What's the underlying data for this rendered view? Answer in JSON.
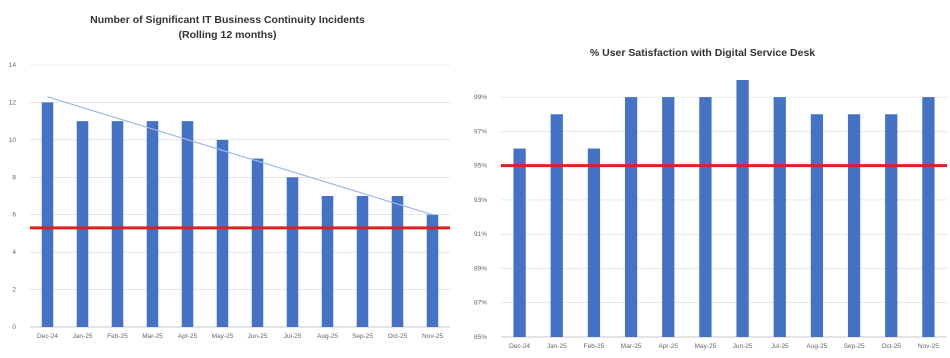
{
  "colors": {
    "bar": "#4472c4",
    "target": "#e02020",
    "trend": "#9fb8e0",
    "grid": "#d9d9d9",
    "axis": "#bfbfbf"
  },
  "chart_data": [
    {
      "type": "bar",
      "title": "Number of Significant IT Business Continuity Incidents",
      "subtitle": "(Rolling 12 months)",
      "categories": [
        "Dec-24",
        "Jan-25",
        "Feb-25",
        "Mar-25",
        "Apr-25",
        "May-25",
        "Jun-25",
        "Jul-25",
        "Aug-25",
        "Sep-25",
        "Oct-25",
        "Nov-25"
      ],
      "values": [
        12,
        11,
        11,
        11,
        11,
        10,
        9,
        8,
        7,
        7,
        7,
        6
      ],
      "ylim": [
        0,
        14
      ],
      "yticks": [
        "0",
        "2",
        "4",
        "6",
        "8",
        "10",
        "12",
        "14"
      ],
      "target_line": 5.3,
      "trendline": {
        "start": 12.3,
        "end": 6.0
      },
      "grid": true
    },
    {
      "type": "bar",
      "title": "% User Satisfaction with Digital Service Desk",
      "categories": [
        "Dec-24",
        "Jan-25",
        "Feb-25",
        "Mar-25",
        "Apr-25",
        "May-25",
        "Jun-25",
        "Jul-25",
        "Aug-25",
        "Sep-25",
        "Oct-25",
        "Nov-25"
      ],
      "values": [
        96,
        98,
        96,
        99,
        99,
        99,
        100,
        99,
        98,
        98,
        98,
        99
      ],
      "ylim": [
        85,
        100
      ],
      "yticks": [
        "85%",
        "87%",
        "89%",
        "91%",
        "93%",
        "95%",
        "97%",
        "99%"
      ],
      "target_line": 95,
      "grid": true
    }
  ]
}
